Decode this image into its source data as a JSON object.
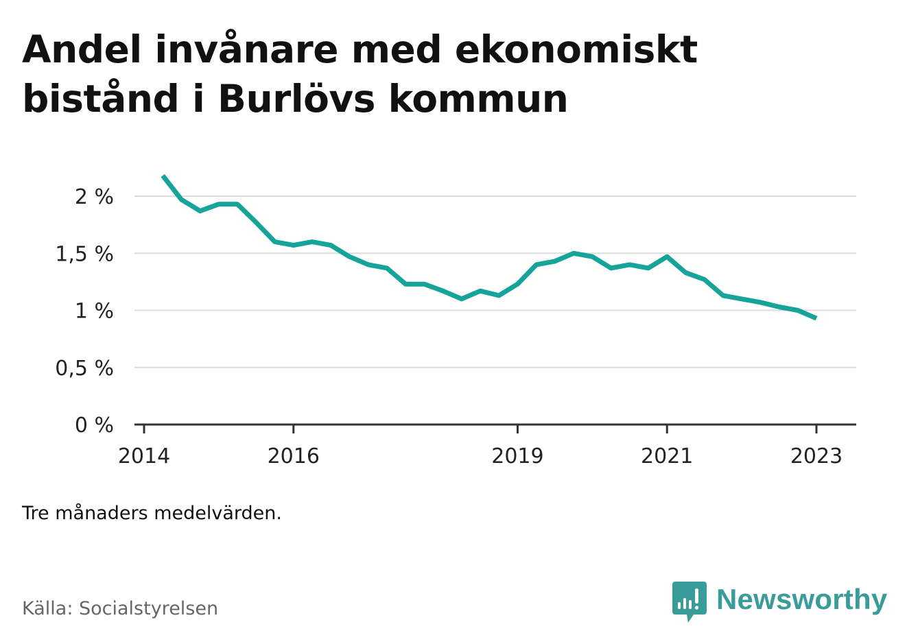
{
  "title": "Andel invånare med ekonomiskt bistånd i Burlövs kommun",
  "note": "Tre månaders medelvärden.",
  "source": "Källa: Socialstyrelsen",
  "brand": {
    "name": "Newsworthy",
    "icon": "bar-chart-speech-bubble-icon",
    "color": "#3a9c98"
  },
  "chart_data": {
    "type": "line",
    "title": "Andel invånare med ekonomiskt bistånd i Burlövs kommun",
    "xlabel": "",
    "ylabel": "",
    "x_ticks": [
      "2014",
      "2016",
      "2019",
      "2021",
      "2023"
    ],
    "y_ticks": [
      "0 %",
      "0,5 %",
      "1 %",
      "1,5 %",
      "2 %"
    ],
    "ylim": [
      0,
      2.2
    ],
    "grid": true,
    "line_color": "#15a39a",
    "series": [
      {
        "x": [
          2014.25,
          2014.5,
          2014.75,
          2015.0,
          2015.25,
          2015.5,
          2015.75,
          2016.0,
          2016.25,
          2016.5,
          2016.75,
          2017.0,
          2017.25,
          2017.5,
          2017.75,
          2018.0,
          2018.25,
          2018.5,
          2018.75,
          2019.0,
          2019.25,
          2019.5,
          2019.75,
          2020.0,
          2020.25,
          2020.5,
          2020.75,
          2021.0,
          2021.25,
          2021.5,
          2021.75,
          2022.0,
          2022.25,
          2022.5,
          2022.75,
          2023.0
        ],
        "values": [
          2.18,
          1.97,
          1.87,
          1.93,
          1.93,
          1.77,
          1.6,
          1.57,
          1.6,
          1.57,
          1.47,
          1.4,
          1.37,
          1.23,
          1.23,
          1.17,
          1.1,
          1.17,
          1.13,
          1.23,
          1.4,
          1.43,
          1.5,
          1.47,
          1.37,
          1.4,
          1.37,
          1.47,
          1.33,
          1.27,
          1.13,
          1.1,
          1.07,
          1.03,
          1.0,
          0.93
        ]
      }
    ]
  }
}
